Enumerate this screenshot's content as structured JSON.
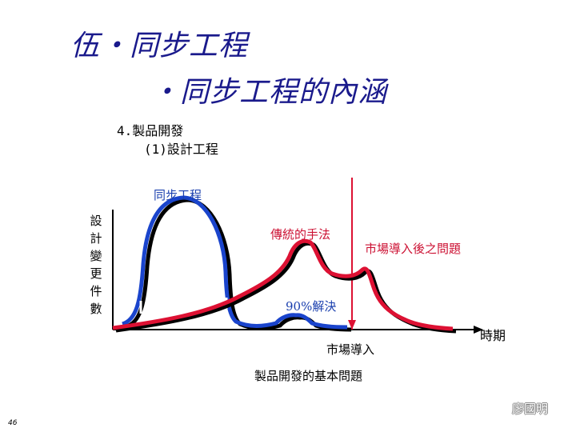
{
  "slide": {
    "title_line1": "伍・同步工程",
    "title_line2": "・同步工程的內涵",
    "subtitle_line1": "4.製品開發",
    "subtitle_line2": "(1)設計工程",
    "page_number": "46",
    "author": "廖國明"
  },
  "diagram": {
    "y_axis_label": "設計變更件數",
    "x_axis_label": "時期",
    "curve_concurrent_label": "同步工程",
    "curve_traditional_label": "傳統的手法",
    "market_problem_label": "市場導入後之問題",
    "ninety_percent_label": "90%解決",
    "market_entry_label": "市場導入",
    "caption": "製品開發的基本問題",
    "colors": {
      "concurrent": "#1a44cc",
      "traditional": "#dd1133",
      "shadow": "#000000",
      "axis": "#000000",
      "market_line": "#dd1133"
    }
  }
}
